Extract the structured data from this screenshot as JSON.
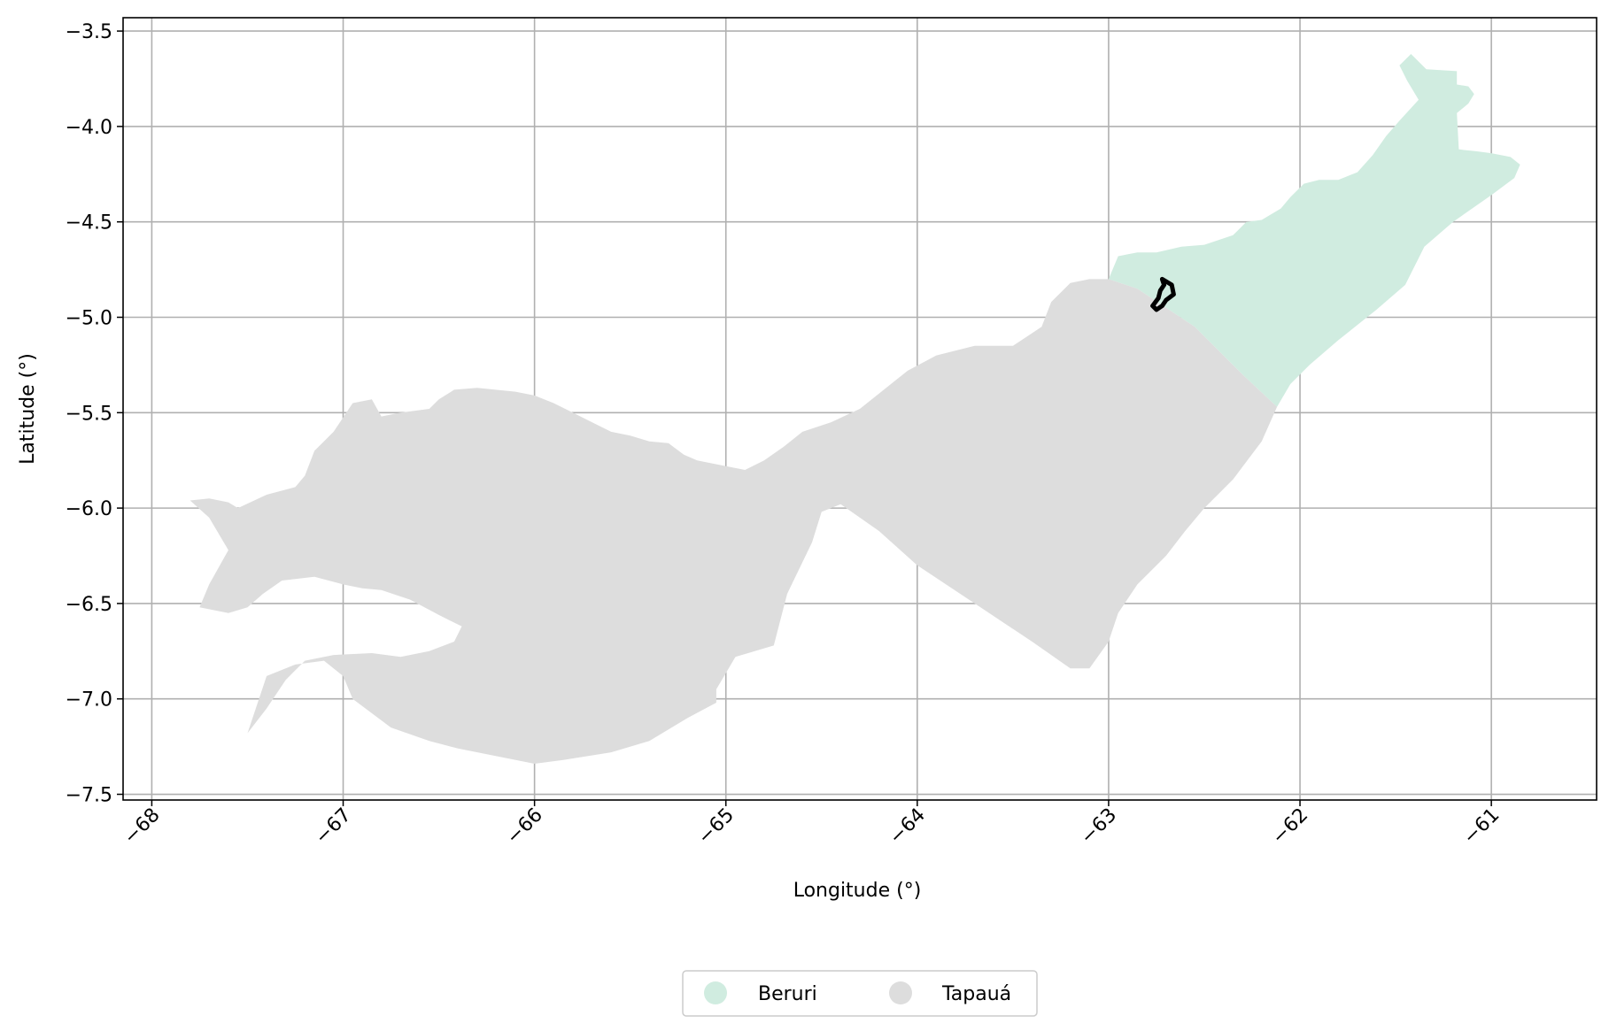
{
  "chart_data": {
    "type": "map",
    "xlabel": "Longitude (°)",
    "ylabel": "Latitude (°)",
    "xlim": [
      -68.15,
      -60.45
    ],
    "ylim": [
      -7.53,
      -3.43
    ],
    "grid": true,
    "x_ticks": [
      -68,
      -67,
      -66,
      -65,
      -64,
      -63,
      -62,
      -61
    ],
    "x_tick_labels": [
      "−68",
      "−67",
      "−66",
      "−65",
      "−64",
      "−63",
      "−62",
      "−61"
    ],
    "y_ticks": [
      -3.5,
      -4.0,
      -4.5,
      -5.0,
      -5.5,
      -6.0,
      -6.5,
      -7.0,
      -7.5
    ],
    "y_tick_labels": [
      "−3.5",
      "−4.0",
      "−4.5",
      "−5.0",
      "−5.5",
      "−6.0",
      "−6.5",
      "−7.0",
      "−7.5"
    ],
    "regions": [
      {
        "name": "Beruri",
        "color": "#d0ece0",
        "polygon": [
          [
            -63.0,
            -4.8
          ],
          [
            -62.95,
            -4.68
          ],
          [
            -62.85,
            -4.66
          ],
          [
            -62.75,
            -4.66
          ],
          [
            -62.62,
            -4.63
          ],
          [
            -62.5,
            -4.62
          ],
          [
            -62.35,
            -4.57
          ],
          [
            -62.28,
            -4.5
          ],
          [
            -62.2,
            -4.49
          ],
          [
            -62.1,
            -4.43
          ],
          [
            -62.05,
            -4.37
          ],
          [
            -61.98,
            -4.3
          ],
          [
            -61.9,
            -4.28
          ],
          [
            -61.8,
            -4.28
          ],
          [
            -61.7,
            -4.24
          ],
          [
            -61.62,
            -4.15
          ],
          [
            -61.55,
            -4.05
          ],
          [
            -61.48,
            -3.97
          ],
          [
            -61.38,
            -3.86
          ],
          [
            -61.44,
            -3.76
          ],
          [
            -61.48,
            -3.68
          ],
          [
            -61.42,
            -3.62
          ],
          [
            -61.34,
            -3.7
          ],
          [
            -61.18,
            -3.71
          ],
          [
            -61.18,
            -3.78
          ],
          [
            -61.12,
            -3.79
          ],
          [
            -61.09,
            -3.83
          ],
          [
            -61.12,
            -3.88
          ],
          [
            -61.18,
            -3.93
          ],
          [
            -61.17,
            -4.12
          ],
          [
            -61.08,
            -4.13
          ],
          [
            -61.0,
            -4.14
          ],
          [
            -60.9,
            -4.16
          ],
          [
            -60.85,
            -4.2
          ],
          [
            -60.88,
            -4.27
          ],
          [
            -61.0,
            -4.36
          ],
          [
            -61.2,
            -4.5
          ],
          [
            -61.35,
            -4.63
          ],
          [
            -61.45,
            -4.83
          ],
          [
            -61.6,
            -4.96
          ],
          [
            -61.8,
            -5.12
          ],
          [
            -61.95,
            -5.25
          ],
          [
            -62.05,
            -5.35
          ],
          [
            -62.12,
            -5.47
          ],
          [
            -62.3,
            -5.3
          ],
          [
            -62.55,
            -5.05
          ],
          [
            -62.7,
            -4.95
          ],
          [
            -62.85,
            -4.85
          ]
        ]
      },
      {
        "name": "Tapauá",
        "color": "#dddddd",
        "polygon": [
          [
            -67.75,
            -6.52
          ],
          [
            -67.7,
            -6.4
          ],
          [
            -67.6,
            -6.22
          ],
          [
            -67.7,
            -6.05
          ],
          [
            -67.8,
            -5.96
          ],
          [
            -67.7,
            -5.95
          ],
          [
            -67.6,
            -5.97
          ],
          [
            -67.55,
            -6.0
          ],
          [
            -67.4,
            -5.93
          ],
          [
            -67.25,
            -5.89
          ],
          [
            -67.2,
            -5.83
          ],
          [
            -67.15,
            -5.7
          ],
          [
            -67.05,
            -5.6
          ],
          [
            -66.95,
            -5.45
          ],
          [
            -66.85,
            -5.43
          ],
          [
            -66.8,
            -5.52
          ],
          [
            -66.7,
            -5.5
          ],
          [
            -66.55,
            -5.48
          ],
          [
            -66.5,
            -5.43
          ],
          [
            -66.42,
            -5.38
          ],
          [
            -66.3,
            -5.37
          ],
          [
            -66.1,
            -5.39
          ],
          [
            -66.0,
            -5.41
          ],
          [
            -65.9,
            -5.45
          ],
          [
            -65.8,
            -5.5
          ],
          [
            -65.7,
            -5.55
          ],
          [
            -65.6,
            -5.6
          ],
          [
            -65.5,
            -5.62
          ],
          [
            -65.4,
            -5.65
          ],
          [
            -65.3,
            -5.66
          ],
          [
            -65.22,
            -5.72
          ],
          [
            -65.15,
            -5.75
          ],
          [
            -65.0,
            -5.78
          ],
          [
            -64.9,
            -5.8
          ],
          [
            -64.8,
            -5.75
          ],
          [
            -64.7,
            -5.68
          ],
          [
            -64.6,
            -5.6
          ],
          [
            -64.45,
            -5.55
          ],
          [
            -64.3,
            -5.48
          ],
          [
            -64.2,
            -5.4
          ],
          [
            -64.05,
            -5.28
          ],
          [
            -63.9,
            -5.2
          ],
          [
            -63.7,
            -5.15
          ],
          [
            -63.5,
            -5.15
          ],
          [
            -63.35,
            -5.05
          ],
          [
            -63.3,
            -4.92
          ],
          [
            -63.2,
            -4.82
          ],
          [
            -63.1,
            -4.8
          ],
          [
            -63.0,
            -4.8
          ],
          [
            -62.85,
            -4.85
          ],
          [
            -62.7,
            -4.95
          ],
          [
            -62.55,
            -5.05
          ],
          [
            -62.3,
            -5.3
          ],
          [
            -62.12,
            -5.47
          ],
          [
            -62.2,
            -5.65
          ],
          [
            -62.35,
            -5.85
          ],
          [
            -62.5,
            -6.0
          ],
          [
            -62.6,
            -6.12
          ],
          [
            -62.7,
            -6.25
          ],
          [
            -62.85,
            -6.4
          ],
          [
            -62.95,
            -6.55
          ],
          [
            -63.0,
            -6.7
          ],
          [
            -63.1,
            -6.84
          ],
          [
            -63.2,
            -6.84
          ],
          [
            -63.4,
            -6.7
          ],
          [
            -63.7,
            -6.5
          ],
          [
            -64.0,
            -6.3
          ],
          [
            -64.2,
            -6.12
          ],
          [
            -64.4,
            -5.98
          ],
          [
            -64.5,
            -6.02
          ],
          [
            -64.55,
            -6.18
          ],
          [
            -64.68,
            -6.45
          ],
          [
            -64.75,
            -6.72
          ],
          [
            -64.95,
            -6.78
          ],
          [
            -65.05,
            -6.95
          ],
          [
            -65.05,
            -7.02
          ],
          [
            -65.2,
            -7.1
          ],
          [
            -65.4,
            -7.22
          ],
          [
            -65.6,
            -7.28
          ],
          [
            -65.85,
            -7.32
          ],
          [
            -66.0,
            -7.34
          ],
          [
            -66.2,
            -7.3
          ],
          [
            -66.4,
            -7.26
          ],
          [
            -66.55,
            -7.22
          ],
          [
            -66.75,
            -7.15
          ],
          [
            -66.95,
            -7.0
          ],
          [
            -67.0,
            -6.88
          ],
          [
            -67.1,
            -6.8
          ],
          [
            -67.25,
            -6.82
          ],
          [
            -67.4,
            -6.88
          ],
          [
            -67.5,
            -7.18
          ],
          [
            -67.4,
            -7.05
          ],
          [
            -67.3,
            -6.9
          ],
          [
            -67.2,
            -6.8
          ],
          [
            -67.05,
            -6.77
          ],
          [
            -66.85,
            -6.76
          ],
          [
            -66.7,
            -6.78
          ],
          [
            -66.55,
            -6.75
          ],
          [
            -66.42,
            -6.7
          ],
          [
            -66.38,
            -6.62
          ],
          [
            -66.5,
            -6.56
          ],
          [
            -66.65,
            -6.48
          ],
          [
            -66.8,
            -6.43
          ],
          [
            -66.9,
            -6.42
          ],
          [
            -67.0,
            -6.4
          ],
          [
            -67.15,
            -6.36
          ],
          [
            -67.32,
            -6.38
          ],
          [
            -67.42,
            -6.45
          ],
          [
            -67.5,
            -6.52
          ],
          [
            -67.6,
            -6.55
          ]
        ]
      }
    ],
    "highlight_outline": {
      "color": "#000000",
      "polygon": [
        [
          -62.72,
          -4.8
        ],
        [
          -62.67,
          -4.83
        ],
        [
          -62.66,
          -4.88
        ],
        [
          -62.7,
          -4.91
        ],
        [
          -62.72,
          -4.94
        ],
        [
          -62.75,
          -4.96
        ],
        [
          -62.77,
          -4.94
        ],
        [
          -62.74,
          -4.9
        ],
        [
          -62.73,
          -4.86
        ],
        [
          -62.71,
          -4.83
        ]
      ]
    },
    "legend": {
      "position": "bottom-center",
      "entries": [
        {
          "label": "Beruri",
          "color": "#d0ece0"
        },
        {
          "label": "Tapauá",
          "color": "#dddddd"
        }
      ]
    }
  }
}
